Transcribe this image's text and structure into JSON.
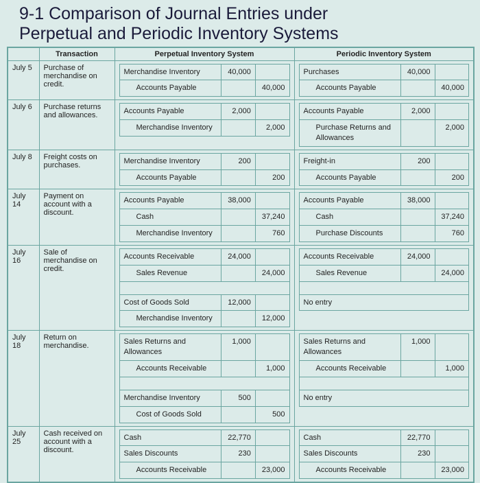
{
  "title_line1": "9-1 Comparison of Journal Entries under",
  "title_line2": "Perpetual and Periodic Inventory Systems",
  "headers": {
    "transaction": "Transaction",
    "perpetual": "Perpetual Inventory System",
    "periodic": "Periodic Inventory System"
  },
  "rows": [
    {
      "date": "July 5",
      "transaction": "Purchase of merchandise on credit.",
      "perpetual": [
        {
          "account": "Merchandise Inventory",
          "debit": "40,000",
          "credit": "",
          "indent": false
        },
        {
          "account": "Accounts Payable",
          "debit": "",
          "credit": "40,000",
          "indent": true
        }
      ],
      "periodic": [
        {
          "account": "Purchases",
          "debit": "40,000",
          "credit": "",
          "indent": false
        },
        {
          "account": "Accounts Payable",
          "debit": "",
          "credit": "40,000",
          "indent": true
        }
      ]
    },
    {
      "date": "July 6",
      "transaction": "Purchase returns and allowances.",
      "perpetual": [
        {
          "account": "Accounts Payable",
          "debit": "2,000",
          "credit": "",
          "indent": false
        },
        {
          "account": "Merchandise Inventory",
          "debit": "",
          "credit": "2,000",
          "indent": true
        }
      ],
      "periodic": [
        {
          "account": "Accounts Payable",
          "debit": "2,000",
          "credit": "",
          "indent": false
        },
        {
          "account": "Purchase Returns and Allowances",
          "debit": "",
          "credit": "2,000",
          "indent": true
        }
      ]
    },
    {
      "date": "July 8",
      "transaction": "Freight costs on purchases.",
      "perpetual": [
        {
          "account": "Merchandise Inventory",
          "debit": "200",
          "credit": "",
          "indent": false
        },
        {
          "account": "Accounts Payable",
          "debit": "",
          "credit": "200",
          "indent": true
        }
      ],
      "periodic": [
        {
          "account": "Freight-in",
          "debit": "200",
          "credit": "",
          "indent": false
        },
        {
          "account": "Accounts Payable",
          "debit": "",
          "credit": "200",
          "indent": true
        }
      ]
    },
    {
      "date": "July 14",
      "transaction": "Payment on account with a discount.",
      "perpetual": [
        {
          "account": "Accounts Payable",
          "debit": "38,000",
          "credit": "",
          "indent": false
        },
        {
          "account": "Cash",
          "debit": "",
          "credit": "37,240",
          "indent": true
        },
        {
          "account": "Merchandise Inventory",
          "debit": "",
          "credit": "760",
          "indent": true
        }
      ],
      "periodic": [
        {
          "account": "Accounts Payable",
          "debit": "38,000",
          "credit": "",
          "indent": false
        },
        {
          "account": "Cash",
          "debit": "",
          "credit": "37,240",
          "indent": true
        },
        {
          "account": "Purchase Discounts",
          "debit": "",
          "credit": "760",
          "indent": true
        }
      ]
    },
    {
      "date": "July 16",
      "transaction": "Sale of merchandise on credit.",
      "perpetual": [
        {
          "account": "Accounts Receivable",
          "debit": "24,000",
          "credit": "",
          "indent": false
        },
        {
          "account": "Sales Revenue",
          "debit": "",
          "credit": "24,000",
          "indent": true
        },
        {
          "spacer": true
        },
        {
          "account": "Cost of Goods Sold",
          "debit": "12,000",
          "credit": "",
          "indent": false
        },
        {
          "account": "Merchandise Inventory",
          "debit": "",
          "credit": "12,000",
          "indent": true
        }
      ],
      "periodic": [
        {
          "account": "Accounts Receivable",
          "debit": "24,000",
          "credit": "",
          "indent": false
        },
        {
          "account": "Sales Revenue",
          "debit": "",
          "credit": "24,000",
          "indent": true
        },
        {
          "spacer": true
        },
        {
          "account": "No entry",
          "noentry": true
        }
      ]
    },
    {
      "date": "July 18",
      "transaction": "Return on merchandise.",
      "perpetual": [
        {
          "account": "Sales Returns and Allowances",
          "debit": "1,000",
          "credit": "",
          "indent": false
        },
        {
          "account": "Accounts Receivable",
          "debit": "",
          "credit": "1,000",
          "indent": true
        },
        {
          "spacer": true
        },
        {
          "account": "Merchandise Inventory",
          "debit": "500",
          "credit": "",
          "indent": false
        },
        {
          "account": "Cost of Goods Sold",
          "debit": "",
          "credit": "500",
          "indent": true
        }
      ],
      "periodic": [
        {
          "account": "Sales Returns and Allowances",
          "debit": "1,000",
          "credit": "",
          "indent": false
        },
        {
          "account": "Accounts Receivable",
          "debit": "",
          "credit": "1,000",
          "indent": true
        },
        {
          "spacer": true
        },
        {
          "account": "No entry",
          "noentry": true
        }
      ]
    },
    {
      "date": "July 25",
      "transaction": "Cash received on account with a discount.",
      "perpetual": [
        {
          "account": "Cash",
          "debit": "22,770",
          "credit": "",
          "indent": false
        },
        {
          "account": "Sales Discounts",
          "debit": "230",
          "credit": "",
          "indent": false
        },
        {
          "account": "Accounts Receivable",
          "debit": "",
          "credit": "23,000",
          "indent": true
        }
      ],
      "periodic": [
        {
          "account": "Cash",
          "debit": "22,770",
          "credit": "",
          "indent": false
        },
        {
          "account": "Sales Discounts",
          "debit": "230",
          "credit": "",
          "indent": false
        },
        {
          "account": "Accounts Receivable",
          "debit": "",
          "credit": "23,000",
          "indent": true
        }
      ]
    }
  ]
}
